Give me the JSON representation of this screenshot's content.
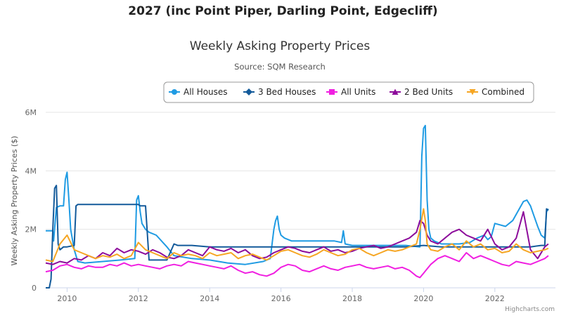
{
  "page": {
    "heading": "2027 (inc Point Piper, Darling Point, Edgecliff)"
  },
  "chart_data": {
    "type": "line",
    "title": "Weekly Asking Property Prices",
    "subtitle": "Source: SQM Research",
    "ylabel": "Weekly Asking Property Prices ($)",
    "xlabel": "",
    "ylim": [
      0,
      6000000
    ],
    "xlim": [
      2009.4,
      2023.7
    ],
    "y_ticks": [
      {
        "value": 0,
        "label": "0"
      },
      {
        "value": 2000000,
        "label": "2M"
      },
      {
        "value": 4000000,
        "label": "4M"
      },
      {
        "value": 6000000,
        "label": "6M"
      }
    ],
    "x_ticks": [
      {
        "value": 2010,
        "label": "2010"
      },
      {
        "value": 2012,
        "label": "2012"
      },
      {
        "value": 2014,
        "label": "2014"
      },
      {
        "value": 2016,
        "label": "2016"
      },
      {
        "value": 2018,
        "label": "2018"
      },
      {
        "value": 2020,
        "label": "2020"
      },
      {
        "value": 2022,
        "label": "2022"
      }
    ],
    "grid": "horizontal",
    "legend_position": "top-right",
    "credit": "Highcharts.com",
    "series": [
      {
        "name": "All Houses",
        "color": "#1f9be3",
        "marker": "circle",
        "x": [
          2009.4,
          2009.6,
          2009.62,
          2009.7,
          2009.8,
          2009.9,
          2009.95,
          2010.0,
          2010.05,
          2010.1,
          2010.2,
          2010.3,
          2010.5,
          2011.0,
          2011.5,
          2011.9,
          2011.95,
          2012.0,
          2012.05,
          2012.1,
          2012.2,
          2012.3,
          2012.5,
          2012.8,
          2013.0,
          2013.5,
          2014.0,
          2014.5,
          2015.0,
          2015.5,
          2015.7,
          2015.8,
          2015.85,
          2015.9,
          2015.95,
          2016.0,
          2016.1,
          2016.3,
          2016.6,
          2017.0,
          2017.5,
          2017.7,
          2017.75,
          2017.8,
          2018.0,
          2018.5,
          2019.0,
          2019.5,
          2019.9,
          2019.95,
          2020.0,
          2020.05,
          2020.1,
          2020.15,
          2020.2,
          2020.3,
          2020.5,
          2021.0,
          2021.3,
          2021.5,
          2021.7,
          2021.8,
          2021.9,
          2022.0,
          2022.3,
          2022.5,
          2022.8,
          2022.9,
          2023.0,
          2023.1,
          2023.2,
          2023.3,
          2023.4,
          2023.45,
          2023.5
        ],
        "y": [
          1950000,
          1950000,
          1600000,
          2750000,
          2800000,
          2800000,
          3700000,
          3950000,
          3000000,
          2000000,
          1300000,
          900000,
          850000,
          900000,
          950000,
          1000000,
          3000000,
          3150000,
          2600000,
          2200000,
          2000000,
          1900000,
          1800000,
          1400000,
          1100000,
          1000000,
          950000,
          850000,
          800000,
          900000,
          1000000,
          2000000,
          2300000,
          2450000,
          2000000,
          1800000,
          1700000,
          1600000,
          1600000,
          1600000,
          1600000,
          1550000,
          1950000,
          1500000,
          1450000,
          1450000,
          1450000,
          1450000,
          1400000,
          4500000,
          5450000,
          5550000,
          3000000,
          2000000,
          1700000,
          1600000,
          1500000,
          1500000,
          1550000,
          1700000,
          1800000,
          1650000,
          1750000,
          2200000,
          2100000,
          2300000,
          2950000,
          3000000,
          2800000,
          2450000,
          2100000,
          1800000,
          1700000,
          2600000,
          2700000
        ]
      },
      {
        "name": "3 Bed Houses",
        "color": "#135a9a",
        "marker": "diamond",
        "x": [
          2009.4,
          2009.5,
          2009.55,
          2009.6,
          2009.65,
          2009.7,
          2009.75,
          2009.8,
          2009.85,
          2009.9,
          2010.0,
          2010.2,
          2010.25,
          2010.3,
          2010.35,
          2011.0,
          2011.5,
          2012.0,
          2012.05,
          2012.1,
          2012.15,
          2012.2,
          2012.3,
          2012.5,
          2012.8,
          2013.0,
          2013.1,
          2013.5,
          2014.0,
          2014.5,
          2015.0,
          2015.5,
          2016.0,
          2016.5,
          2017.0,
          2017.5,
          2018.0,
          2018.5,
          2019.0,
          2019.5,
          2020.0,
          2020.5,
          2021.0,
          2021.5,
          2022.0,
          2022.5,
          2023.0,
          2023.3,
          2023.4,
          2023.45,
          2023.5
        ],
        "y": [
          0,
          0,
          300000,
          2000000,
          3400000,
          3500000,
          1500000,
          1300000,
          1350000,
          1400000,
          1400000,
          1450000,
          2800000,
          2850000,
          2850000,
          2850000,
          2850000,
          2850000,
          2800000,
          2800000,
          2800000,
          2800000,
          950000,
          950000,
          950000,
          1500000,
          1450000,
          1450000,
          1400000,
          1400000,
          1400000,
          1400000,
          1400000,
          1400000,
          1400000,
          1400000,
          1400000,
          1400000,
          1400000,
          1400000,
          1450000,
          1400000,
          1400000,
          1400000,
          1400000,
          1400000,
          1400000,
          1450000,
          1450000,
          2700000,
          2650000
        ]
      },
      {
        "name": "All Units",
        "color": "#f01fe1",
        "marker": "square",
        "x": [
          2009.4,
          2009.6,
          2009.8,
          2010.0,
          2010.2,
          2010.4,
          2010.6,
          2010.8,
          2011.0,
          2011.2,
          2011.4,
          2011.6,
          2011.8,
          2012.0,
          2012.2,
          2012.4,
          2012.6,
          2012.8,
          2013.0,
          2013.2,
          2013.4,
          2013.6,
          2013.8,
          2014.0,
          2014.2,
          2014.4,
          2014.6,
          2014.8,
          2015.0,
          2015.2,
          2015.4,
          2015.6,
          2015.8,
          2016.0,
          2016.2,
          2016.4,
          2016.6,
          2016.8,
          2017.0,
          2017.2,
          2017.4,
          2017.6,
          2017.8,
          2018.0,
          2018.2,
          2018.4,
          2018.6,
          2018.8,
          2019.0,
          2019.2,
          2019.4,
          2019.6,
          2019.8,
          2019.9,
          2020.0,
          2020.2,
          2020.4,
          2020.6,
          2020.8,
          2021.0,
          2021.2,
          2021.4,
          2021.6,
          2021.8,
          2022.0,
          2022.2,
          2022.4,
          2022.6,
          2022.8,
          2023.0,
          2023.2,
          2023.4,
          2023.5
        ],
        "y": [
          550000,
          600000,
          750000,
          800000,
          700000,
          650000,
          750000,
          700000,
          700000,
          800000,
          750000,
          850000,
          750000,
          800000,
          750000,
          700000,
          650000,
          750000,
          800000,
          750000,
          900000,
          850000,
          800000,
          750000,
          700000,
          650000,
          750000,
          600000,
          500000,
          550000,
          450000,
          400000,
          500000,
          700000,
          800000,
          750000,
          600000,
          550000,
          650000,
          750000,
          650000,
          600000,
          700000,
          750000,
          800000,
          700000,
          650000,
          700000,
          750000,
          650000,
          700000,
          600000,
          400000,
          350000,
          500000,
          800000,
          1000000,
          1100000,
          1000000,
          900000,
          1200000,
          1000000,
          1100000,
          1000000,
          900000,
          800000,
          750000,
          900000,
          850000,
          800000,
          900000,
          1000000,
          1100000
        ]
      },
      {
        "name": "2 Bed Units",
        "color": "#8d0c9b",
        "marker": "triangle",
        "x": [
          2009.4,
          2009.6,
          2009.8,
          2010.0,
          2010.2,
          2010.4,
          2010.6,
          2010.8,
          2011.0,
          2011.2,
          2011.4,
          2011.6,
          2011.8,
          2012.0,
          2012.2,
          2012.4,
          2012.6,
          2012.8,
          2013.0,
          2013.2,
          2013.4,
          2013.6,
          2013.8,
          2014.0,
          2014.2,
          2014.4,
          2014.6,
          2014.8,
          2015.0,
          2015.2,
          2015.4,
          2015.6,
          2015.8,
          2016.0,
          2016.2,
          2016.4,
          2016.6,
          2016.8,
          2017.0,
          2017.2,
          2017.4,
          2017.6,
          2017.8,
          2018.0,
          2018.2,
          2018.4,
          2018.6,
          2018.8,
          2019.0,
          2019.2,
          2019.4,
          2019.6,
          2019.8,
          2019.9,
          2020.0,
          2020.1,
          2020.2,
          2020.4,
          2020.6,
          2020.8,
          2021.0,
          2021.2,
          2021.4,
          2021.6,
          2021.8,
          2022.0,
          2022.2,
          2022.4,
          2022.6,
          2022.8,
          2023.0,
          2023.2,
          2023.4,
          2023.5
        ],
        "y": [
          850000,
          800000,
          900000,
          850000,
          1000000,
          950000,
          1100000,
          1000000,
          1200000,
          1100000,
          1350000,
          1200000,
          1300000,
          1250000,
          1150000,
          1300000,
          1200000,
          1050000,
          1000000,
          1100000,
          1300000,
          1200000,
          1100000,
          1400000,
          1300000,
          1250000,
          1350000,
          1200000,
          1300000,
          1100000,
          1000000,
          1050000,
          1200000,
          1300000,
          1400000,
          1350000,
          1250000,
          1200000,
          1300000,
          1400000,
          1250000,
          1300000,
          1200000,
          1250000,
          1350000,
          1400000,
          1450000,
          1350000,
          1400000,
          1500000,
          1600000,
          1700000,
          1900000,
          2300000,
          2200000,
          1800000,
          1600000,
          1500000,
          1700000,
          1900000,
          2000000,
          1800000,
          1700000,
          1600000,
          2000000,
          1500000,
          1300000,
          1400000,
          1700000,
          2600000,
          1300000,
          1000000,
          1400000,
          1500000
        ]
      },
      {
        "name": "Combined",
        "color": "#f6a623",
        "marker": "triangle-down",
        "x": [
          2009.4,
          2009.6,
          2009.8,
          2010.0,
          2010.2,
          2010.4,
          2010.6,
          2010.8,
          2011.0,
          2011.2,
          2011.4,
          2011.6,
          2011.8,
          2012.0,
          2012.2,
          2012.4,
          2012.6,
          2012.8,
          2013.0,
          2013.2,
          2013.4,
          2013.6,
          2013.8,
          2014.0,
          2014.2,
          2014.4,
          2014.6,
          2014.8,
          2015.0,
          2015.2,
          2015.4,
          2015.6,
          2015.8,
          2016.0,
          2016.2,
          2016.4,
          2016.6,
          2016.8,
          2017.0,
          2017.2,
          2017.4,
          2017.6,
          2017.8,
          2018.0,
          2018.2,
          2018.4,
          2018.6,
          2018.8,
          2019.0,
          2019.2,
          2019.4,
          2019.6,
          2019.8,
          2019.9,
          2020.0,
          2020.05,
          2020.1,
          2020.2,
          2020.4,
          2020.6,
          2020.8,
          2021.0,
          2021.2,
          2021.4,
          2021.6,
          2021.8,
          2022.0,
          2022.2,
          2022.4,
          2022.6,
          2022.8,
          2023.0,
          2023.2,
          2023.4,
          2023.5
        ],
        "y": [
          950000,
          900000,
          1500000,
          1800000,
          1300000,
          1200000,
          1100000,
          1000000,
          1100000,
          1050000,
          1150000,
          1000000,
          1100000,
          1550000,
          1300000,
          1200000,
          1100000,
          1000000,
          1200000,
          1100000,
          1150000,
          1100000,
          1000000,
          1200000,
          1100000,
          1150000,
          1200000,
          1000000,
          1100000,
          1150000,
          1050000,
          950000,
          1100000,
          1250000,
          1300000,
          1200000,
          1100000,
          1050000,
          1150000,
          1300000,
          1200000,
          1100000,
          1150000,
          1300000,
          1350000,
          1200000,
          1100000,
          1200000,
          1300000,
          1250000,
          1300000,
          1400000,
          1500000,
          2000000,
          2700000,
          2300000,
          1500000,
          1300000,
          1250000,
          1400000,
          1500000,
          1300000,
          1600000,
          1400000,
          1500000,
          1300000,
          1350000,
          1200000,
          1250000,
          1500000,
          1300000,
          1200000,
          1250000,
          1300000,
          1350000
        ]
      }
    ]
  }
}
